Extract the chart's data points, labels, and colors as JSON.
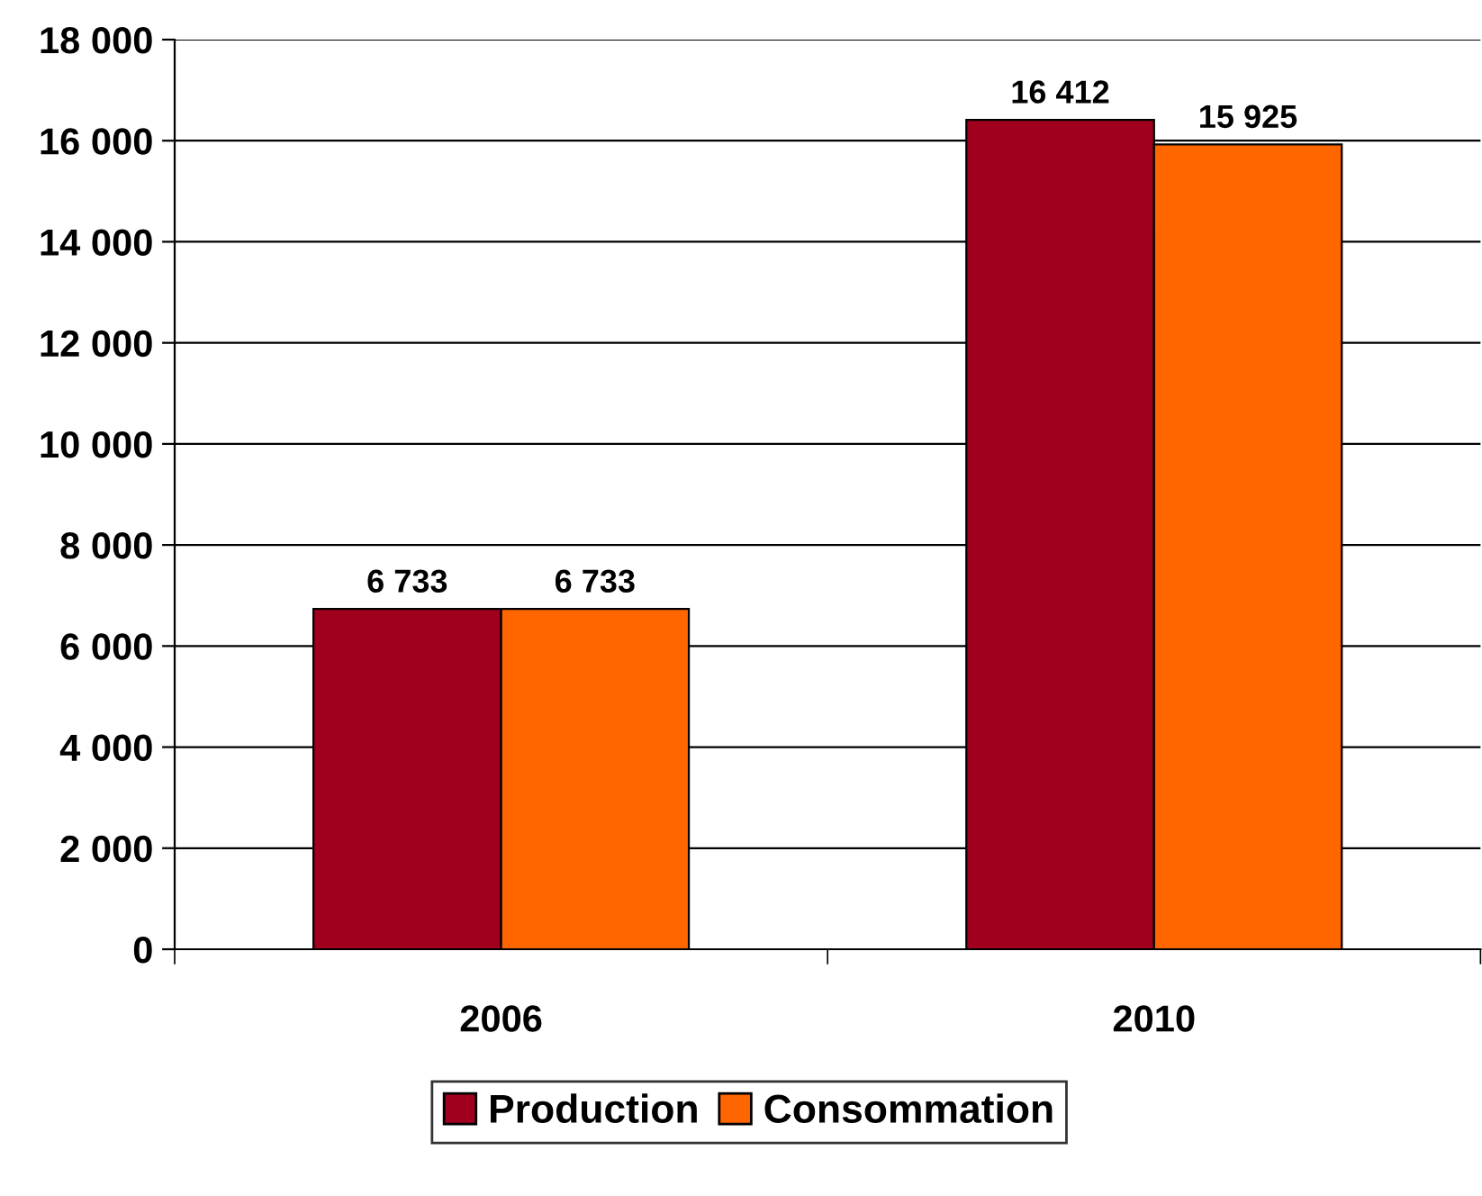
{
  "chart_data": {
    "type": "bar",
    "categories": [
      "2006",
      "2010"
    ],
    "series": [
      {
        "name": "Production",
        "color": "#a0001e",
        "values": [
          6733,
          16412
        ],
        "value_labels": [
          "6 733",
          "16 412"
        ]
      },
      {
        "name": "Consommation",
        "color": "#ff6600",
        "values": [
          6733,
          15925
        ],
        "value_labels": [
          "6 733",
          "15 925"
        ]
      }
    ],
    "ylim": [
      0,
      18000
    ],
    "yticks": [
      0,
      {
        "value": 2000,
        "label": "2 000"
      },
      {
        "value": 4000,
        "label": "4 000"
      },
      {
        "value": 6000,
        "label": "6 000"
      },
      {
        "value": 8000,
        "label": "8 000"
      },
      {
        "value": 10000,
        "label": "10 000"
      },
      {
        "value": 12000,
        "label": "12 000"
      },
      {
        "value": 14000,
        "label": "14 000"
      },
      {
        "value": 16000,
        "label": "16 000"
      },
      {
        "value": 18000,
        "label": "18 000"
      }
    ],
    "grid": "y",
    "legend": "bottom"
  }
}
